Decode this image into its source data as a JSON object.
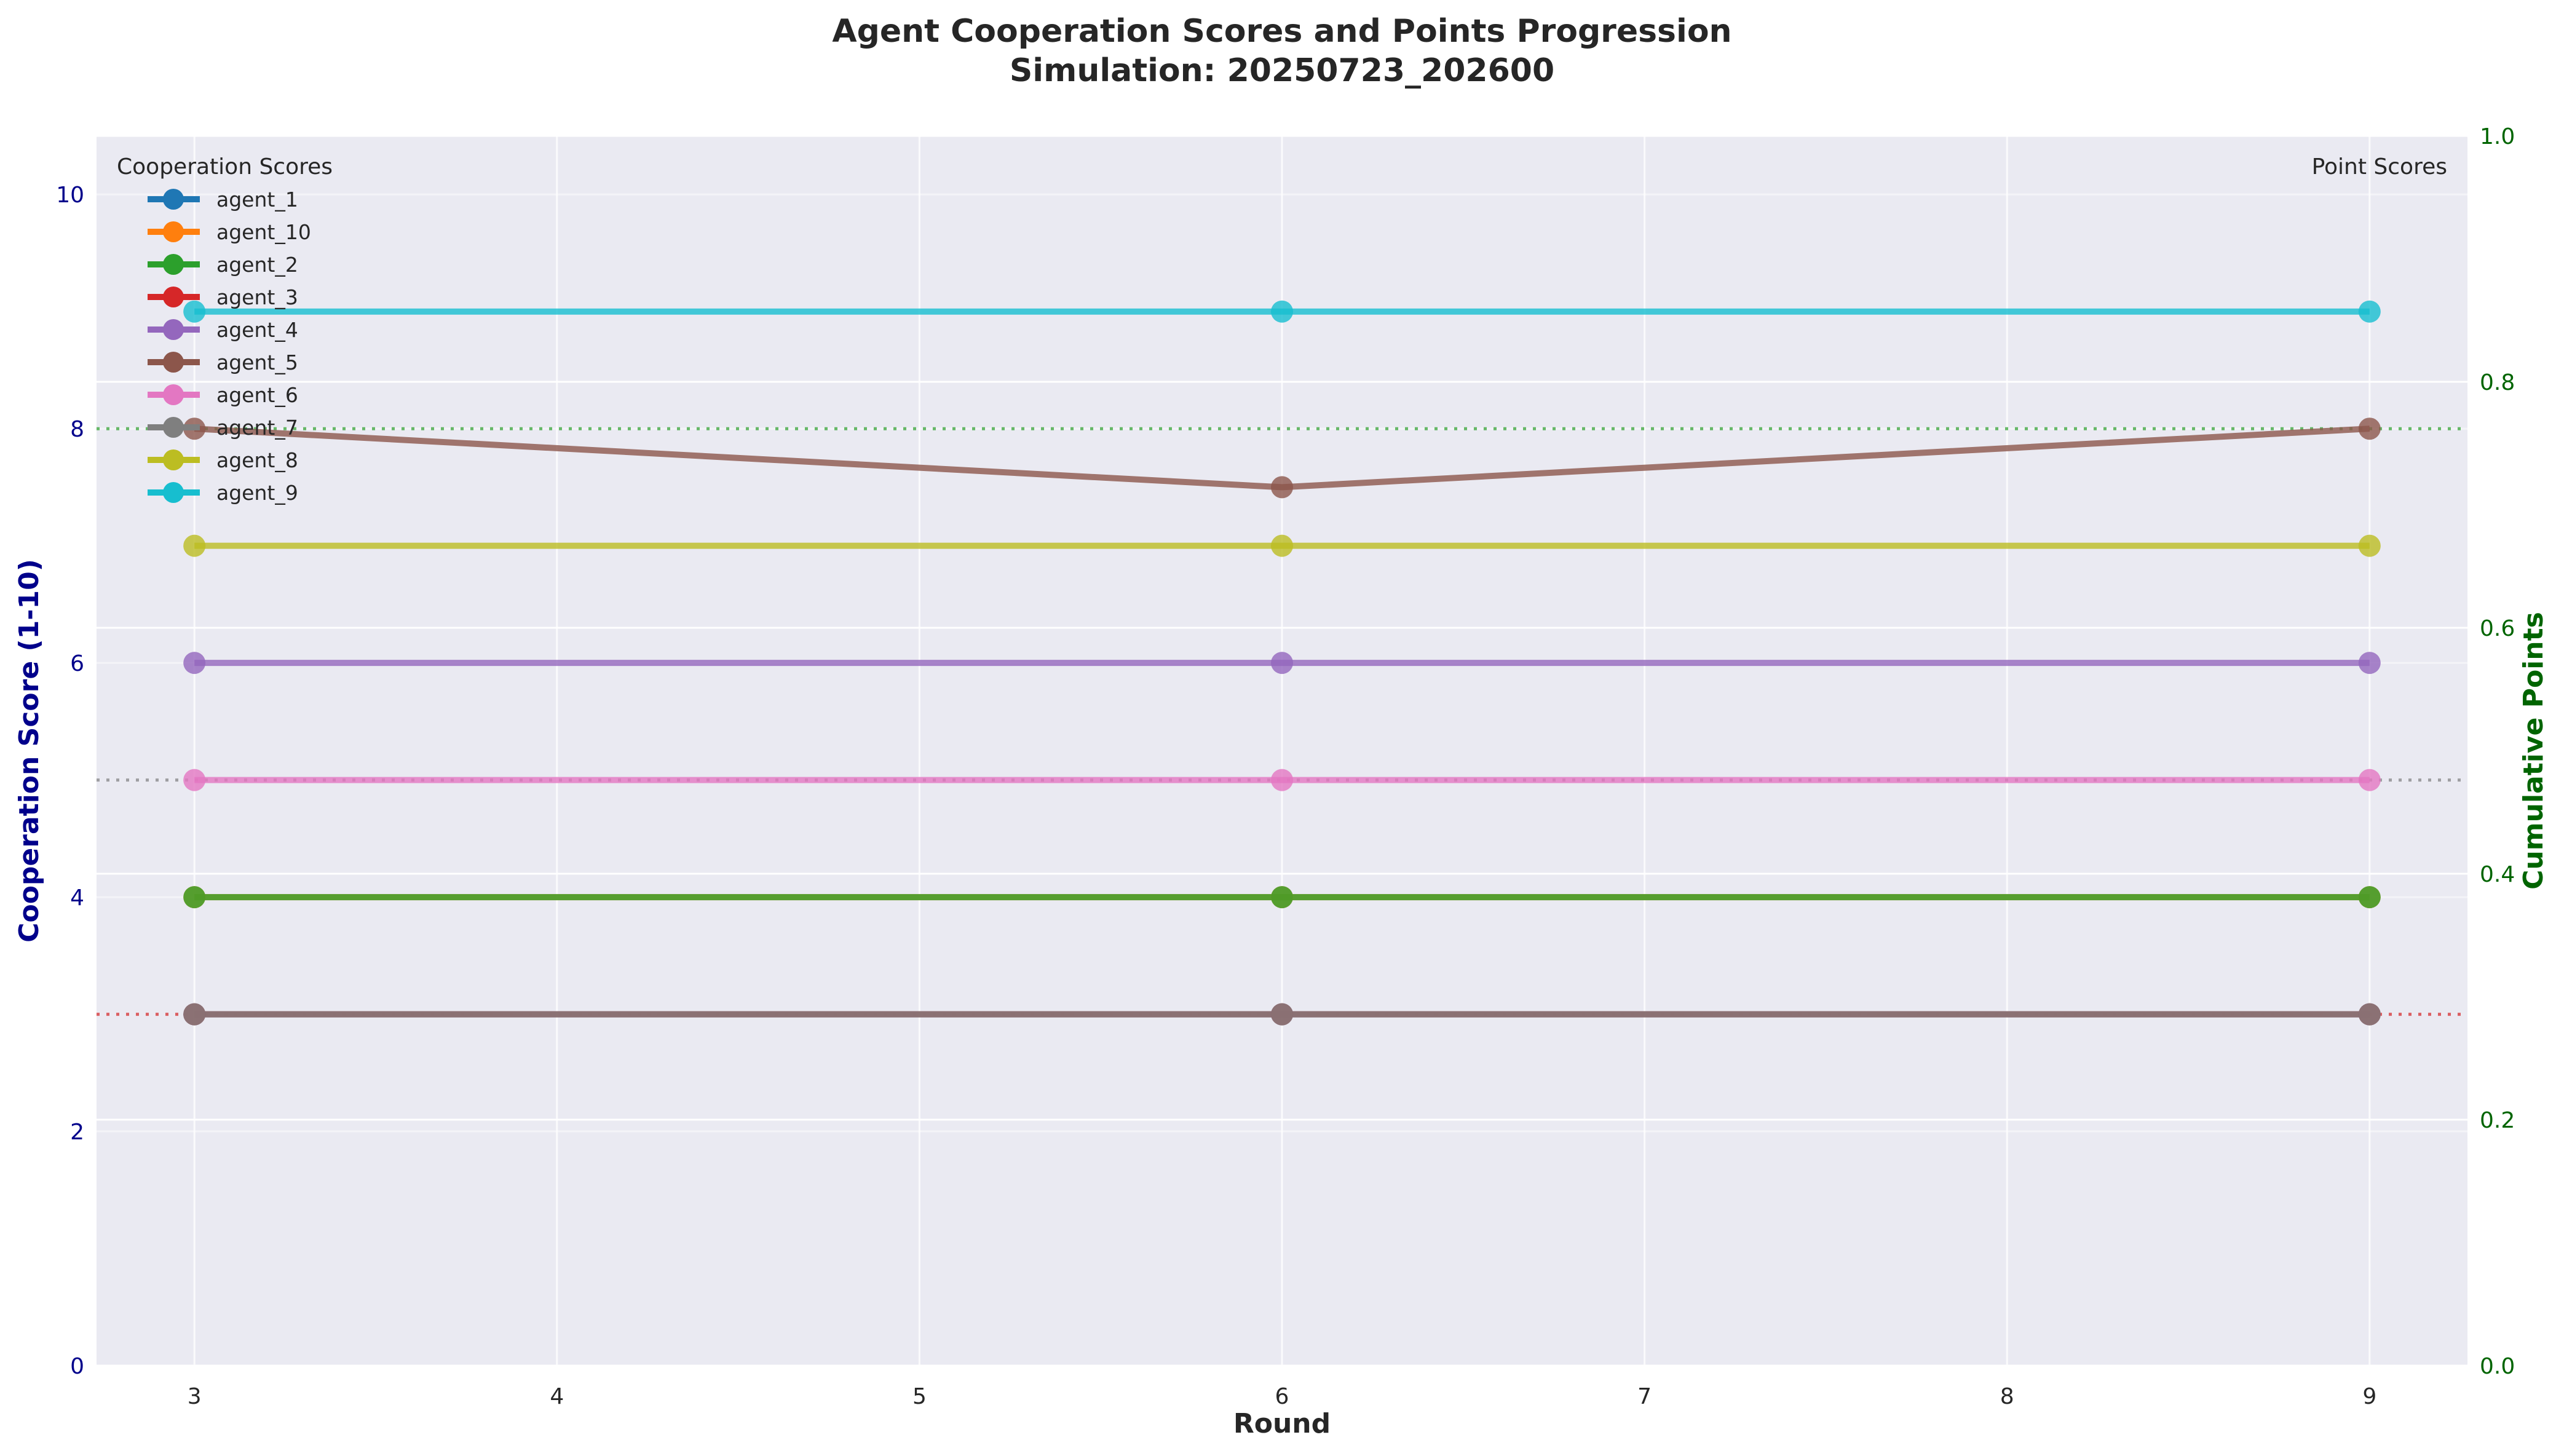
{
  "chart_data": {
    "type": "line",
    "title": "Agent Cooperation Scores and Points Progression",
    "subtitle": "Simulation: 20250723_202600",
    "xlabel": "Round",
    "ylabel": "Cooperation Score (1-10)",
    "y2label": "Cumulative Points",
    "x": [
      3,
      6,
      9
    ],
    "xticks": [
      3,
      4,
      5,
      6,
      7,
      8,
      9
    ],
    "xlim": [
      2.73,
      9.27
    ],
    "ylim": [
      0,
      10.5
    ],
    "yticks": [
      0,
      2,
      4,
      6,
      8,
      10
    ],
    "y2lim": [
      0,
      1.0
    ],
    "y2ticks": [
      "0.0",
      "0.2",
      "0.4",
      "0.6",
      "0.8",
      "1.0"
    ],
    "grid": true,
    "legend_title": "Cooperation Scores",
    "legend_position": "top-left",
    "right_legend_title": "Point Scores",
    "reference_lines": [
      {
        "y": 8,
        "color": "#2ca02c"
      },
      {
        "y": 5,
        "color": "#7f7f7f"
      },
      {
        "y": 3,
        "color": "#d62728"
      }
    ],
    "series": [
      {
        "name": "agent_1",
        "color": "#1f77b4",
        "values": [
          3,
          3,
          3
        ]
      },
      {
        "name": "agent_10",
        "color": "#ff7f0e",
        "values": [
          4,
          4,
          4
        ]
      },
      {
        "name": "agent_2",
        "color": "#2ca02c",
        "values": [
          4,
          4,
          4
        ]
      },
      {
        "name": "agent_3",
        "color": "#d62728",
        "values": [
          3,
          3,
          3
        ]
      },
      {
        "name": "agent_4",
        "color": "#9467bd",
        "values": [
          6,
          6,
          6
        ]
      },
      {
        "name": "agent_5",
        "color": "#8c564b",
        "values": [
          8,
          7.5,
          8
        ]
      },
      {
        "name": "agent_6",
        "color": "#e377c2",
        "values": [
          5,
          5,
          5
        ]
      },
      {
        "name": "agent_7",
        "color": "#7f7f7f",
        "values": [
          3,
          3,
          3
        ]
      },
      {
        "name": "agent_8",
        "color": "#bcbd22",
        "values": [
          7,
          7,
          7
        ]
      },
      {
        "name": "agent_9",
        "color": "#17becf",
        "values": [
          9,
          9,
          9
        ]
      }
    ],
    "colors": {
      "plot_bg": "#eaeaf2",
      "grid": "#ffffff",
      "left_axis": "#00008b",
      "right_axis": "#006400",
      "text": "#262626"
    }
  }
}
